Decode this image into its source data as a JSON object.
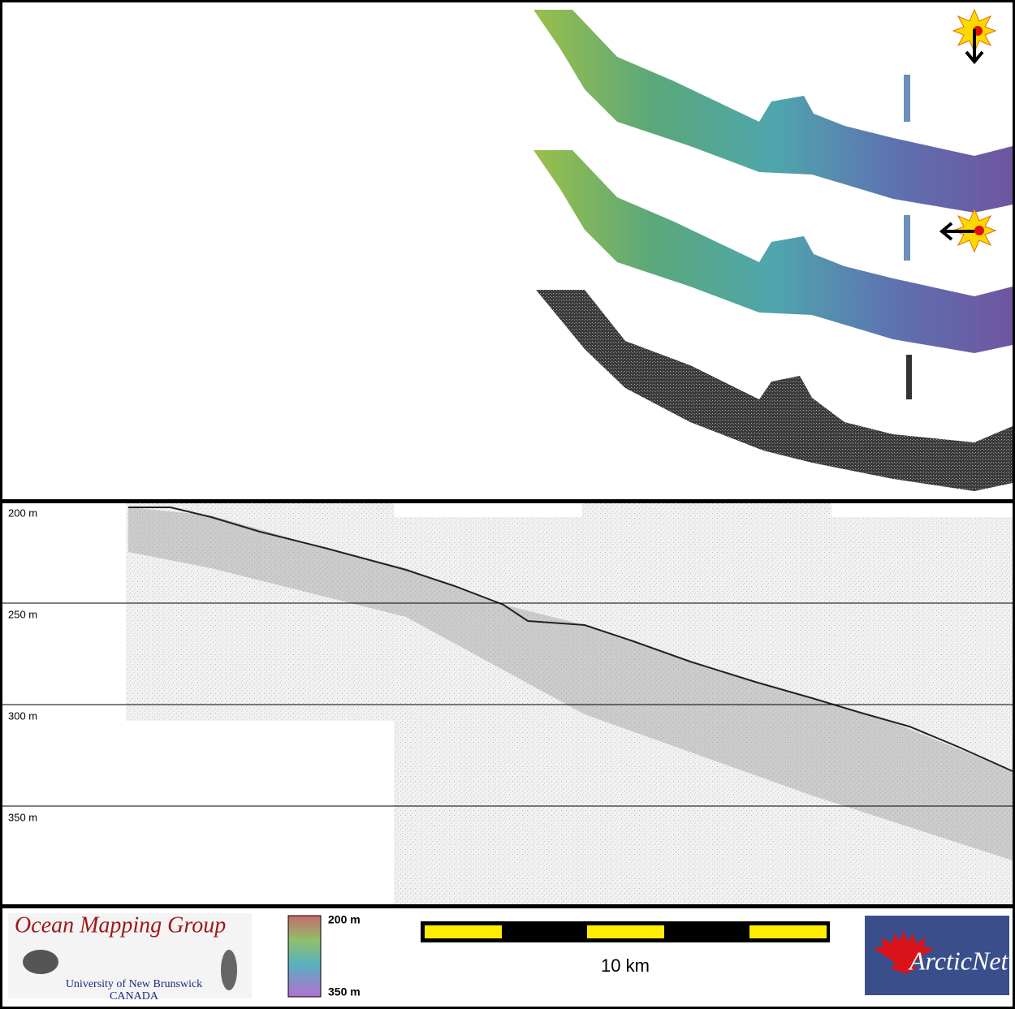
{
  "profile": {
    "depth_labels": [
      "200 m",
      "250 m",
      "300 m",
      "350 m"
    ]
  },
  "footer": {
    "logo": {
      "title": "Ocean Mapping Group",
      "university": "University of New Brunswick",
      "country": "CANADA"
    },
    "colorbar": {
      "top_label": "200 m",
      "bottom_label": "350 m"
    },
    "scale_bar": {
      "label": "10 km"
    },
    "partner_logo": {
      "label": "ArcticNet"
    }
  }
}
